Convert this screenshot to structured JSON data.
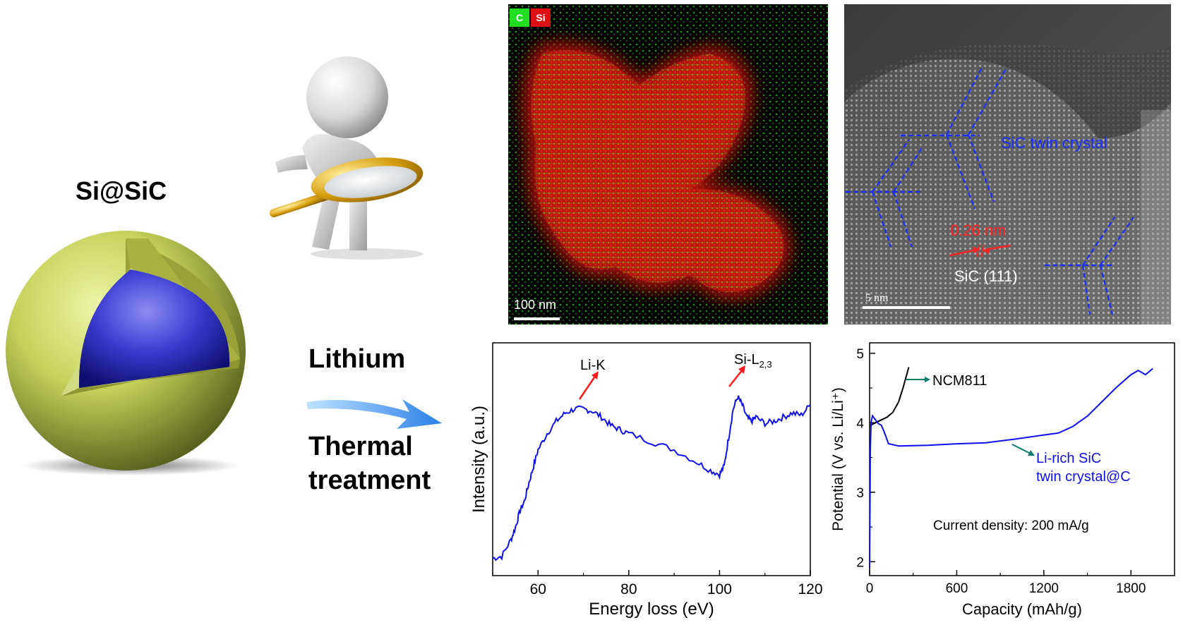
{
  "left": {
    "material_label": "Si@SiC",
    "process_line1": "Lithium",
    "process_line2a": "Thermal",
    "process_line2b": "treatment"
  },
  "eds_map": {
    "legend_c": "C",
    "legend_si": "Si",
    "scale_bar": "100 nm",
    "colors": {
      "carbon": "#22dd22",
      "silicon": "#dd1111"
    }
  },
  "hrtem": {
    "annotation_twin": "SiC twin crystal",
    "annotation_spacing": "0.26 nm",
    "annotation_plane": "SiC (111)",
    "scale_bar": "5 nm",
    "colors": {
      "twin_lines": "#1a2cff",
      "spacing": "#ff2222"
    }
  },
  "chart_data": [
    {
      "type": "line",
      "xlabel": "Energy loss (eV)",
      "ylabel": "Intensity (a.u.)",
      "xlim": [
        50,
        120
      ],
      "xticks": [
        "60",
        "80",
        "100",
        "120"
      ],
      "annotations": [
        "Li-K",
        "Si-L",
        "2,3"
      ],
      "series": [
        {
          "color": "#1010ee",
          "x": [
            50,
            52,
            54,
            55,
            56,
            57,
            58,
            59,
            60,
            62,
            64,
            66,
            68,
            70,
            72,
            74,
            76,
            78,
            80,
            85,
            90,
            95,
            98,
            100,
            101,
            102,
            103,
            104,
            105,
            106,
            107,
            108,
            110,
            112,
            114,
            116,
            118,
            120
          ],
          "y": [
            0.05,
            0.06,
            0.14,
            0.2,
            0.28,
            0.33,
            0.42,
            0.5,
            0.58,
            0.66,
            0.72,
            0.76,
            0.78,
            0.78,
            0.77,
            0.74,
            0.7,
            0.68,
            0.66,
            0.62,
            0.58,
            0.52,
            0.48,
            0.46,
            0.5,
            0.64,
            0.78,
            0.84,
            0.8,
            0.74,
            0.72,
            0.74,
            0.71,
            0.72,
            0.74,
            0.76,
            0.75,
            0.8
          ]
        }
      ]
    },
    {
      "type": "line",
      "xlabel": "Capacity (mAh/g)",
      "ylabel": "Potential (V vs. Li/Li⁺)",
      "xlim": [
        0,
        2100
      ],
      "ylim": [
        1.8,
        5.15
      ],
      "xticks": [
        "0",
        "600",
        "1200",
        "1800"
      ],
      "yticks": [
        "2",
        "3",
        "4",
        "5"
      ],
      "annotation": "Current density: 200 mA/g",
      "series": [
        {
          "name": "NCM811",
          "color": "#000000",
          "x": [
            0,
            20,
            40,
            80,
            120,
            160,
            200,
            230,
            250,
            270
          ],
          "y": [
            3.95,
            3.98,
            4.0,
            4.04,
            4.08,
            4.15,
            4.3,
            4.5,
            4.65,
            4.8
          ]
        },
        {
          "name_line1": "Li-rich SiC",
          "name_line2": "twin crystal@C",
          "color": "#1010ee",
          "x": [
            0,
            5,
            10,
            20,
            40,
            60,
            80,
            100,
            130,
            200,
            400,
            600,
            800,
            1000,
            1200,
            1300,
            1400,
            1500,
            1600,
            1700,
            1800,
            1850,
            1900,
            1950
          ],
          "y": [
            1.9,
            3.6,
            4.0,
            4.1,
            4.05,
            3.98,
            3.97,
            3.88,
            3.7,
            3.67,
            3.67,
            3.69,
            3.72,
            3.76,
            3.82,
            3.86,
            3.95,
            4.1,
            4.3,
            4.5,
            4.7,
            4.76,
            4.7,
            4.78
          ]
        }
      ]
    }
  ]
}
